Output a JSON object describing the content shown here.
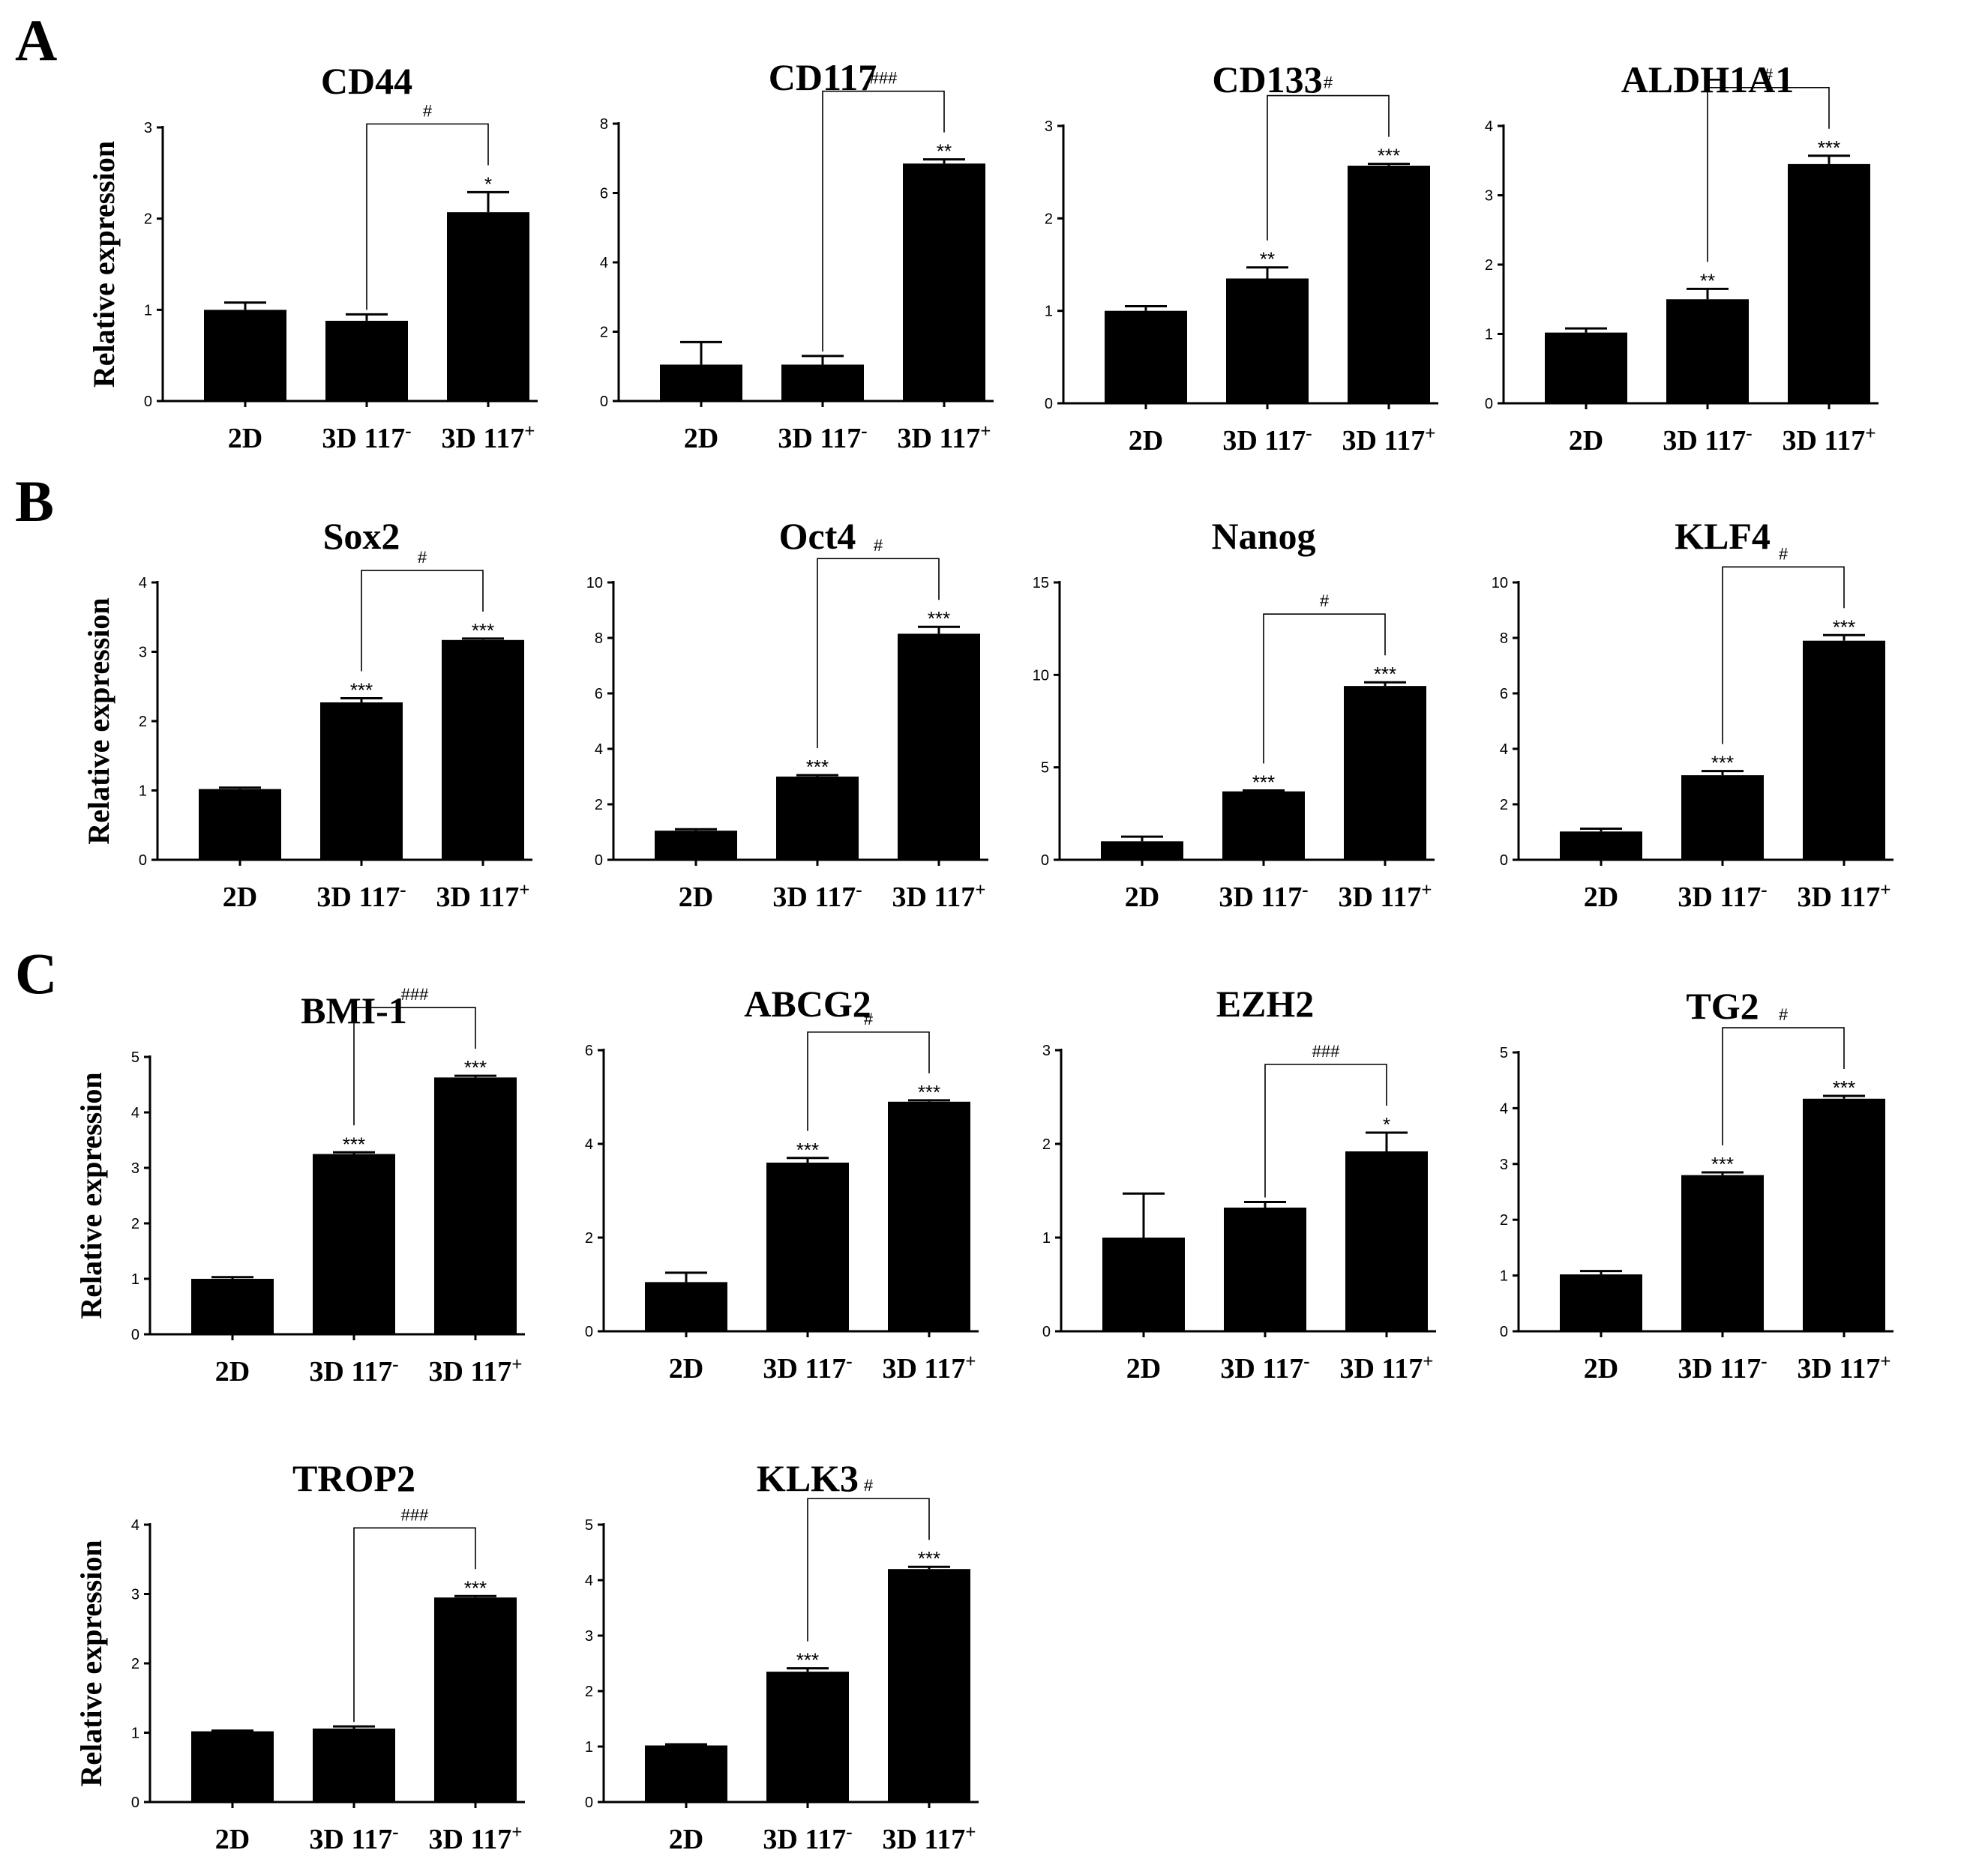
{
  "panels": [
    "A",
    "B",
    "C"
  ],
  "chart_data": [
    {
      "type": "bar",
      "title": "CD44",
      "ylabel": "Relative expression",
      "categories": [
        "2D",
        "3D 117-",
        "3D 117+"
      ],
      "values": [
        1.0,
        0.88,
        2.07
      ],
      "errors": [
        0.08,
        0.07,
        0.22
      ],
      "ylim": [
        0,
        3
      ],
      "yticks": [
        0,
        1,
        2,
        3
      ],
      "significance": [
        "",
        "",
        "*"
      ],
      "bracket": {
        "from": 1,
        "to": 2,
        "label": "#"
      }
    },
    {
      "type": "bar",
      "title": "CD117",
      "ylabel": "",
      "categories": [
        "2D",
        "3D 117-",
        "3D 117+"
      ],
      "values": [
        1.05,
        1.05,
        6.85
      ],
      "errors": [
        0.65,
        0.25,
        0.12
      ],
      "ylim": [
        0,
        8
      ],
      "yticks": [
        0,
        2,
        4,
        6,
        8
      ],
      "significance": [
        "",
        "",
        "**"
      ],
      "bracket": {
        "from": 1,
        "to": 2,
        "label": "###"
      }
    },
    {
      "type": "bar",
      "title": "CD133",
      "ylabel": "",
      "categories": [
        "2D",
        "3D 117-",
        "3D 117+"
      ],
      "values": [
        1.0,
        1.35,
        2.57
      ],
      "errors": [
        0.05,
        0.12,
        0.02
      ],
      "ylim": [
        0,
        3
      ],
      "yticks": [
        0,
        1,
        2,
        3
      ],
      "significance": [
        "",
        "**",
        "***"
      ],
      "bracket": {
        "from": 1,
        "to": 2,
        "label": "#"
      }
    },
    {
      "type": "bar",
      "title": "ALDH1A1",
      "ylabel": "",
      "categories": [
        "2D",
        "3D 117-",
        "3D 117+"
      ],
      "values": [
        1.02,
        1.5,
        3.45
      ],
      "errors": [
        0.06,
        0.15,
        0.12
      ],
      "ylim": [
        0,
        4
      ],
      "yticks": [
        0,
        1,
        2,
        3,
        4
      ],
      "significance": [
        "",
        "**",
        "***"
      ],
      "bracket": {
        "from": 1,
        "to": 2,
        "label": "#"
      }
    },
    {
      "type": "bar",
      "title": "Sox2",
      "ylabel": "Relative expression",
      "categories": [
        "2D",
        "3D 117-",
        "3D 117+"
      ],
      "values": [
        1.02,
        2.27,
        3.17
      ],
      "errors": [
        0.02,
        0.06,
        0.02
      ],
      "ylim": [
        0,
        4
      ],
      "yticks": [
        0,
        1,
        2,
        3,
        4
      ],
      "significance": [
        "",
        "***",
        "***"
      ],
      "bracket": {
        "from": 1,
        "to": 2,
        "label": "#"
      }
    },
    {
      "type": "bar",
      "title": "Oct4",
      "ylabel": "",
      "categories": [
        "2D",
        "3D 117-",
        "3D 117+"
      ],
      "values": [
        1.05,
        3.0,
        8.15
      ],
      "errors": [
        0.05,
        0.05,
        0.25
      ],
      "ylim": [
        0,
        10
      ],
      "yticks": [
        0,
        2,
        4,
        6,
        8,
        10
      ],
      "significance": [
        "",
        "***",
        "***"
      ],
      "bracket": {
        "from": 1,
        "to": 2,
        "label": "#"
      }
    },
    {
      "type": "bar",
      "title": "Nanog",
      "ylabel": "",
      "categories": [
        "2D",
        "3D 117-",
        "3D 117+"
      ],
      "values": [
        1.0,
        3.7,
        9.4
      ],
      "errors": [
        0.25,
        0.05,
        0.2
      ],
      "ylim": [
        0,
        15
      ],
      "yticks": [
        0,
        5,
        10,
        15
      ],
      "significance": [
        "",
        "***",
        "***"
      ],
      "bracket": {
        "from": 1,
        "to": 2,
        "label": "#"
      }
    },
    {
      "type": "bar",
      "title": "KLF4",
      "ylabel": "",
      "categories": [
        "2D",
        "3D 117-",
        "3D 117+"
      ],
      "values": [
        1.02,
        3.05,
        7.9
      ],
      "errors": [
        0.1,
        0.15,
        0.2
      ],
      "ylim": [
        0,
        10
      ],
      "yticks": [
        0,
        2,
        4,
        6,
        8,
        10
      ],
      "significance": [
        "",
        "***",
        "***"
      ],
      "bracket": {
        "from": 1,
        "to": 2,
        "label": "#"
      }
    },
    {
      "type": "bar",
      "title": "BMI-1",
      "ylabel": "Relative expression",
      "categories": [
        "2D",
        "3D 117-",
        "3D 117+"
      ],
      "values": [
        1.0,
        3.25,
        4.63
      ],
      "errors": [
        0.03,
        0.03,
        0.03
      ],
      "ylim": [
        0,
        5
      ],
      "yticks": [
        0,
        1,
        2,
        3,
        4,
        5
      ],
      "significance": [
        "",
        "***",
        "***"
      ],
      "bracket": {
        "from": 1,
        "to": 2,
        "label": "###"
      }
    },
    {
      "type": "bar",
      "title": "ABCG2",
      "ylabel": "",
      "categories": [
        "2D",
        "3D 117-",
        "3D 117+"
      ],
      "values": [
        1.05,
        3.6,
        4.9
      ],
      "errors": [
        0.2,
        0.1,
        0.03
      ],
      "ylim": [
        0,
        6
      ],
      "yticks": [
        0,
        2,
        4,
        6
      ],
      "significance": [
        "",
        "***",
        "***"
      ],
      "bracket": {
        "from": 1,
        "to": 2,
        "label": "#"
      }
    },
    {
      "type": "bar",
      "title": "EZH2",
      "ylabel": "",
      "categories": [
        "2D",
        "3D 117-",
        "3D 117+"
      ],
      "values": [
        1.0,
        1.32,
        1.92
      ],
      "errors": [
        0.47,
        0.06,
        0.2
      ],
      "ylim": [
        0,
        3
      ],
      "yticks": [
        0,
        1,
        2,
        3
      ],
      "significance": [
        "",
        "",
        "*"
      ],
      "bracket": {
        "from": 1,
        "to": 2,
        "label": "###"
      }
    },
    {
      "type": "bar",
      "title": "TG2",
      "ylabel": "",
      "categories": [
        "2D",
        "3D 117-",
        "3D 117+"
      ],
      "values": [
        1.02,
        2.8,
        4.17
      ],
      "errors": [
        0.06,
        0.05,
        0.05
      ],
      "ylim": [
        0,
        5
      ],
      "yticks": [
        0,
        1,
        2,
        3,
        4,
        5
      ],
      "significance": [
        "",
        "***",
        "***"
      ],
      "bracket": {
        "from": 1,
        "to": 2,
        "label": "#"
      }
    },
    {
      "type": "bar",
      "title": "TROP2",
      "ylabel": "Relative expression",
      "categories": [
        "2D",
        "3D 117-",
        "3D 117+"
      ],
      "values": [
        1.02,
        1.06,
        2.95
      ],
      "errors": [
        0.01,
        0.03,
        0.02
      ],
      "ylim": [
        0,
        4
      ],
      "yticks": [
        0,
        1,
        2,
        3,
        4
      ],
      "significance": [
        "",
        "",
        "***"
      ],
      "bracket": {
        "from": 1,
        "to": 2,
        "label": "###"
      }
    },
    {
      "type": "bar",
      "title": "KLK3",
      "ylabel": "",
      "categories": [
        "2D",
        "3D 117-",
        "3D 117+"
      ],
      "values": [
        1.02,
        2.35,
        4.2
      ],
      "errors": [
        0.02,
        0.06,
        0.04
      ],
      "ylim": [
        0,
        5
      ],
      "yticks": [
        0,
        1,
        2,
        3,
        4,
        5
      ],
      "significance": [
        "",
        "***",
        "***"
      ],
      "bracket": {
        "from": 1,
        "to": 2,
        "label": "#"
      }
    }
  ]
}
